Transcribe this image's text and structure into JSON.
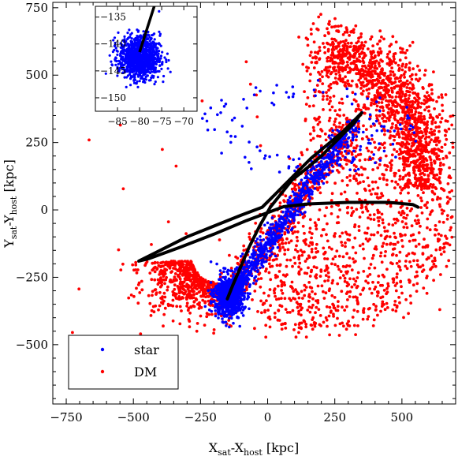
{
  "chart_data": {
    "type": "scatter",
    "xlabel": "X_sat-X_host [kpc]",
    "xlabel_parts": {
      "x_main": "X",
      "x_sub1": "sat",
      "x_dash": "-X",
      "x_sub2": "host",
      "x_unit": " [kpc]"
    },
    "ylabel": "Y_sat-Y_host [kpc]",
    "ylabel_parts": {
      "y_main": "Y",
      "y_sub1": "sat",
      "y_dash": "-Y",
      "y_sub2": "host",
      "y_unit": " [kpc]"
    },
    "xlim": [
      -800,
      700
    ],
    "ylim": [
      -720,
      770
    ],
    "xticks": [
      -750,
      -500,
      -250,
      0,
      250,
      500
    ],
    "xtick_labels": [
      "−750",
      "−500",
      "−250",
      "0",
      "250",
      "500"
    ],
    "yticks": [
      750,
      500,
      250,
      0,
      -250,
      -500
    ],
    "ytick_labels": [
      "750",
      "500",
      "250",
      "0",
      "−250",
      "−500"
    ],
    "grid": false,
    "legend_position": "bottom-left",
    "series": [
      {
        "name": "star",
        "color": "#0000ff"
      },
      {
        "name": "DM",
        "color": "#ff0000"
      }
    ],
    "orbit_track": {
      "color": "#000000",
      "points": [
        [
          560,
          10
        ],
        [
          540,
          20
        ],
        [
          450,
          28
        ],
        [
          300,
          28
        ],
        [
          150,
          22
        ],
        [
          60,
          12
        ],
        [
          0,
          -10
        ],
        [
          -80,
          -40
        ],
        [
          -200,
          -90
        ],
        [
          -330,
          -140
        ],
        [
          -440,
          -180
        ],
        [
          -480,
          -190
        ],
        [
          -420,
          -160
        ],
        [
          -300,
          -100
        ],
        [
          -200,
          -60
        ],
        [
          -100,
          -20
        ],
        [
          -20,
          10
        ],
        [
          30,
          60
        ],
        [
          100,
          130
        ],
        [
          160,
          190
        ],
        [
          220,
          240
        ],
        [
          280,
          290
        ],
        [
          330,
          340
        ],
        [
          350,
          360
        ],
        [
          320,
          320
        ],
        [
          260,
          260
        ],
        [
          200,
          200
        ],
        [
          140,
          150
        ],
        [
          90,
          110
        ],
        [
          50,
          60
        ],
        [
          10,
          10
        ],
        [
          -30,
          -60
        ],
        [
          -70,
          -140
        ],
        [
          -100,
          -210
        ],
        [
          -130,
          -280
        ],
        [
          -150,
          -330
        ]
      ]
    },
    "inset": {
      "xlim": [
        -90,
        -67
      ],
      "ylim": [
        -152.5,
        -133
      ],
      "xticks": [
        -85,
        -80,
        -75,
        -70
      ],
      "xtick_labels": [
        "−85",
        "−80",
        "−75",
        "−70"
      ],
      "yticks": [
        -135,
        -140,
        -145,
        -150
      ],
      "ytick_labels": [
        "−135",
        "−140",
        "−145",
        "−150"
      ],
      "center": [
        -80,
        -142.5
      ],
      "track": [
        [
          -80,
          -141.5
        ],
        [
          -76.5,
          -132.5
        ]
      ]
    }
  }
}
